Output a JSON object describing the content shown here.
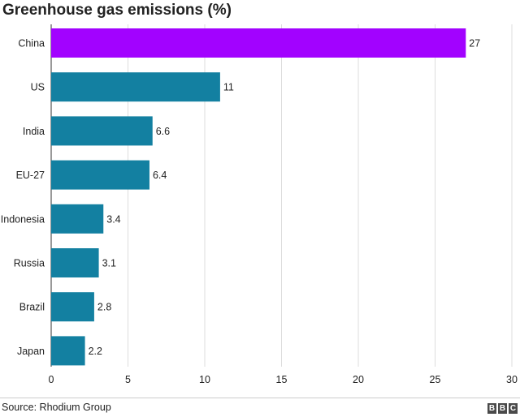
{
  "title": "Greenhouse gas emissions (%)",
  "source": "Source: Rhodium Group",
  "logo": {
    "letters": [
      "B",
      "B",
      "C"
    ],
    "color": "#4a4a4a"
  },
  "chart_data": {
    "type": "bar",
    "orientation": "horizontal",
    "title": "Greenhouse gas emissions (%)",
    "categories": [
      "China",
      "US",
      "India",
      "EU-27",
      "Indonesia",
      "Russia",
      "Brazil",
      "Japan"
    ],
    "values": [
      27,
      11,
      6.6,
      6.4,
      3.4,
      3.1,
      2.8,
      2.2
    ],
    "value_labels": [
      "27",
      "11",
      "6.6",
      "6.4",
      "3.4",
      "3.1",
      "2.8",
      "2.2"
    ],
    "highlight_index": 0,
    "colors": {
      "default_bar": "#1380A1",
      "highlight_bar": "#A202FF",
      "grid": "#dddddd"
    },
    "xlim": [
      0,
      30
    ],
    "xticks": [
      0,
      5,
      10,
      15,
      20,
      25,
      30
    ],
    "xlabel": "",
    "ylabel": "",
    "grid": true,
    "legend": "none"
  }
}
